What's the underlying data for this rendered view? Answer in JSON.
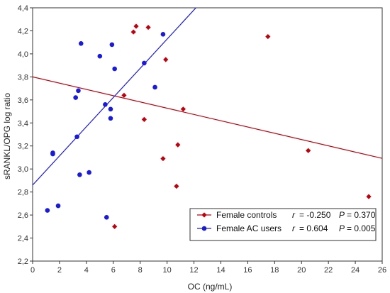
{
  "chart_data": {
    "type": "scatter",
    "title": "",
    "xlabel": "OC (ng/mL)",
    "ylabel": "sRANKL/OPG log ratio",
    "xlim": [
      0,
      26
    ],
    "ylim": [
      2.2,
      4.4
    ],
    "x_ticks": [
      0,
      2,
      4,
      6,
      8,
      10,
      12,
      14,
      16,
      18,
      20,
      22,
      24,
      26
    ],
    "x_tick_labels": [
      "0",
      "2",
      "4",
      "6",
      "8",
      "10",
      "12",
      "14",
      "16",
      "18",
      "20",
      "22",
      "24",
      "26"
    ],
    "y_ticks": [
      2.2,
      2.4,
      2.6,
      2.8,
      3.0,
      3.2,
      3.4,
      3.6,
      3.8,
      4.0,
      4.2,
      4.4
    ],
    "y_tick_labels": [
      "2,2",
      "2,4",
      "2,6",
      "2,8",
      "3,0",
      "3,2",
      "3,4",
      "3,6",
      "3,8",
      "4,0",
      "4,2",
      "4,4"
    ],
    "grid": true,
    "legend_position": "bottom-right",
    "series": [
      {
        "name": "Female controls",
        "color": "#c0000c",
        "marker": "diamond",
        "r_label": "r",
        "r_value": "= -0.250",
        "p_label": "P",
        "p_value": "= 0.370",
        "regression": {
          "intercept": 3.8,
          "slope": -0.02722
        },
        "points": [
          {
            "x": 7.5,
            "y": 4.19
          },
          {
            "x": 7.7,
            "y": 4.24
          },
          {
            "x": 8.6,
            "y": 4.23
          },
          {
            "x": 17.5,
            "y": 4.15
          },
          {
            "x": 9.9,
            "y": 3.95
          },
          {
            "x": 6.8,
            "y": 3.64
          },
          {
            "x": 11.2,
            "y": 3.52
          },
          {
            "x": 8.3,
            "y": 3.43
          },
          {
            "x": 10.8,
            "y": 3.21
          },
          {
            "x": 9.7,
            "y": 3.09
          },
          {
            "x": 20.5,
            "y": 3.16
          },
          {
            "x": 10.7,
            "y": 2.85
          },
          {
            "x": 25.0,
            "y": 2.76
          },
          {
            "x": 6.1,
            "y": 2.5
          }
        ]
      },
      {
        "name": "Female AC users",
        "color": "#1a1adc",
        "marker": "circle",
        "r_label": "r",
        "r_value": "= 0.604",
        "p_label": "P",
        "p_value": "= 0.005",
        "regression": {
          "intercept": 2.86,
          "slope": 0.1268
        },
        "points": [
          {
            "x": 3.6,
            "y": 4.09
          },
          {
            "x": 5.0,
            "y": 3.98
          },
          {
            "x": 5.9,
            "y": 4.08
          },
          {
            "x": 9.7,
            "y": 4.17
          },
          {
            "x": 6.1,
            "y": 3.87
          },
          {
            "x": 8.3,
            "y": 3.92
          },
          {
            "x": 9.1,
            "y": 3.71
          },
          {
            "x": 3.4,
            "y": 3.68
          },
          {
            "x": 3.2,
            "y": 3.62
          },
          {
            "x": 5.4,
            "y": 3.56
          },
          {
            "x": 5.8,
            "y": 3.52
          },
          {
            "x": 5.8,
            "y": 3.44
          },
          {
            "x": 3.3,
            "y": 3.28
          },
          {
            "x": 1.5,
            "y": 3.14
          },
          {
            "x": 1.5,
            "y": 3.13
          },
          {
            "x": 3.5,
            "y": 2.95
          },
          {
            "x": 4.2,
            "y": 2.97
          },
          {
            "x": 1.1,
            "y": 2.64
          },
          {
            "x": 1.9,
            "y": 2.68
          },
          {
            "x": 5.5,
            "y": 2.58
          }
        ]
      }
    ]
  }
}
